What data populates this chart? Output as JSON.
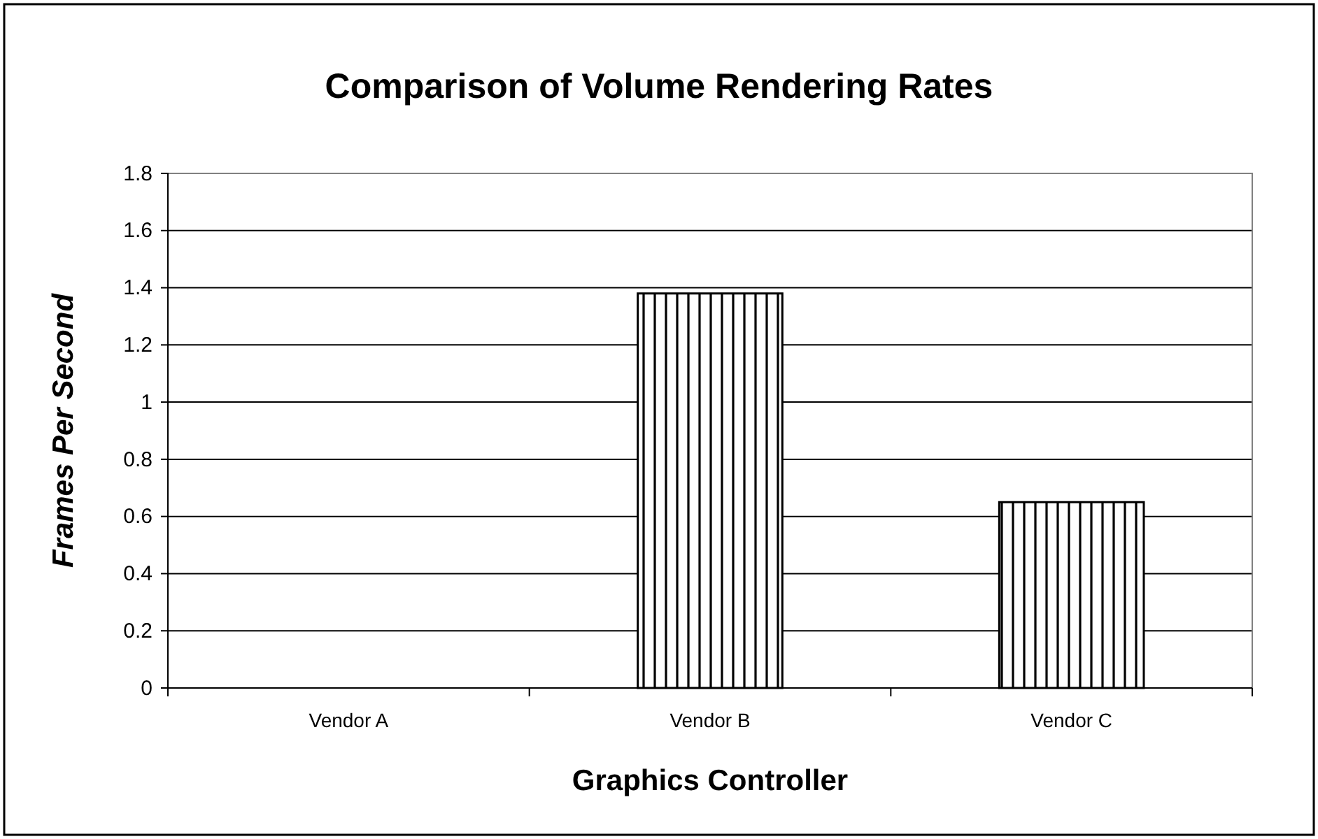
{
  "chart_data": {
    "type": "bar",
    "title": "Comparison of Volume Rendering Rates",
    "xlabel": "Graphics Controller",
    "ylabel": "Frames Per Second",
    "categories": [
      "Vendor A",
      "Vendor B",
      "Vendor C"
    ],
    "values": [
      0,
      1.38,
      0.65
    ],
    "color": "#000000",
    "ylim": [
      0,
      1.8
    ],
    "yticks": [
      0,
      0.2,
      0.4,
      0.6,
      0.8,
      1,
      1.2,
      1.4,
      1.6,
      1.8
    ],
    "grid": "y"
  }
}
